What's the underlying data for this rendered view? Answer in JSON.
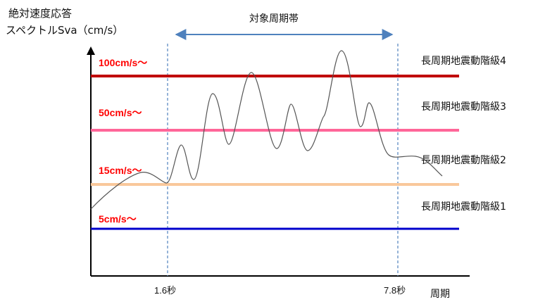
{
  "title_line1": "絶対速度応答",
  "title_line2": "スペクトルSva（cm/s）",
  "x_axis_label": "周期",
  "target_period_label": "対象周期帯",
  "boundaries": [
    {
      "label": "1.6秒",
      "period": 1.6
    },
    {
      "label": "7.8秒",
      "period": 7.8
    }
  ],
  "thresholds": [
    {
      "label": "100cm/s〜",
      "value": 100,
      "color": "#c00000",
      "class_label": "長周期地震動階級4"
    },
    {
      "label": "50cm/s〜",
      "value": 50,
      "color": "#ff6699",
      "class_label": "長周期地震動階級3"
    },
    {
      "label": "15cm/s〜",
      "value": 15,
      "color": "#f9c89b",
      "class_label": "長周期地震動階級2"
    },
    {
      "label": "5cm/s〜",
      "value": 5,
      "color": "#0000cc",
      "class_label": "長周期地震動階級1"
    }
  ],
  "colors": {
    "axis": "#000000",
    "arrow": "#4f81bd",
    "guide": "#4f81bd",
    "curve": "#555555",
    "threshold_text": "#ff0000"
  }
}
